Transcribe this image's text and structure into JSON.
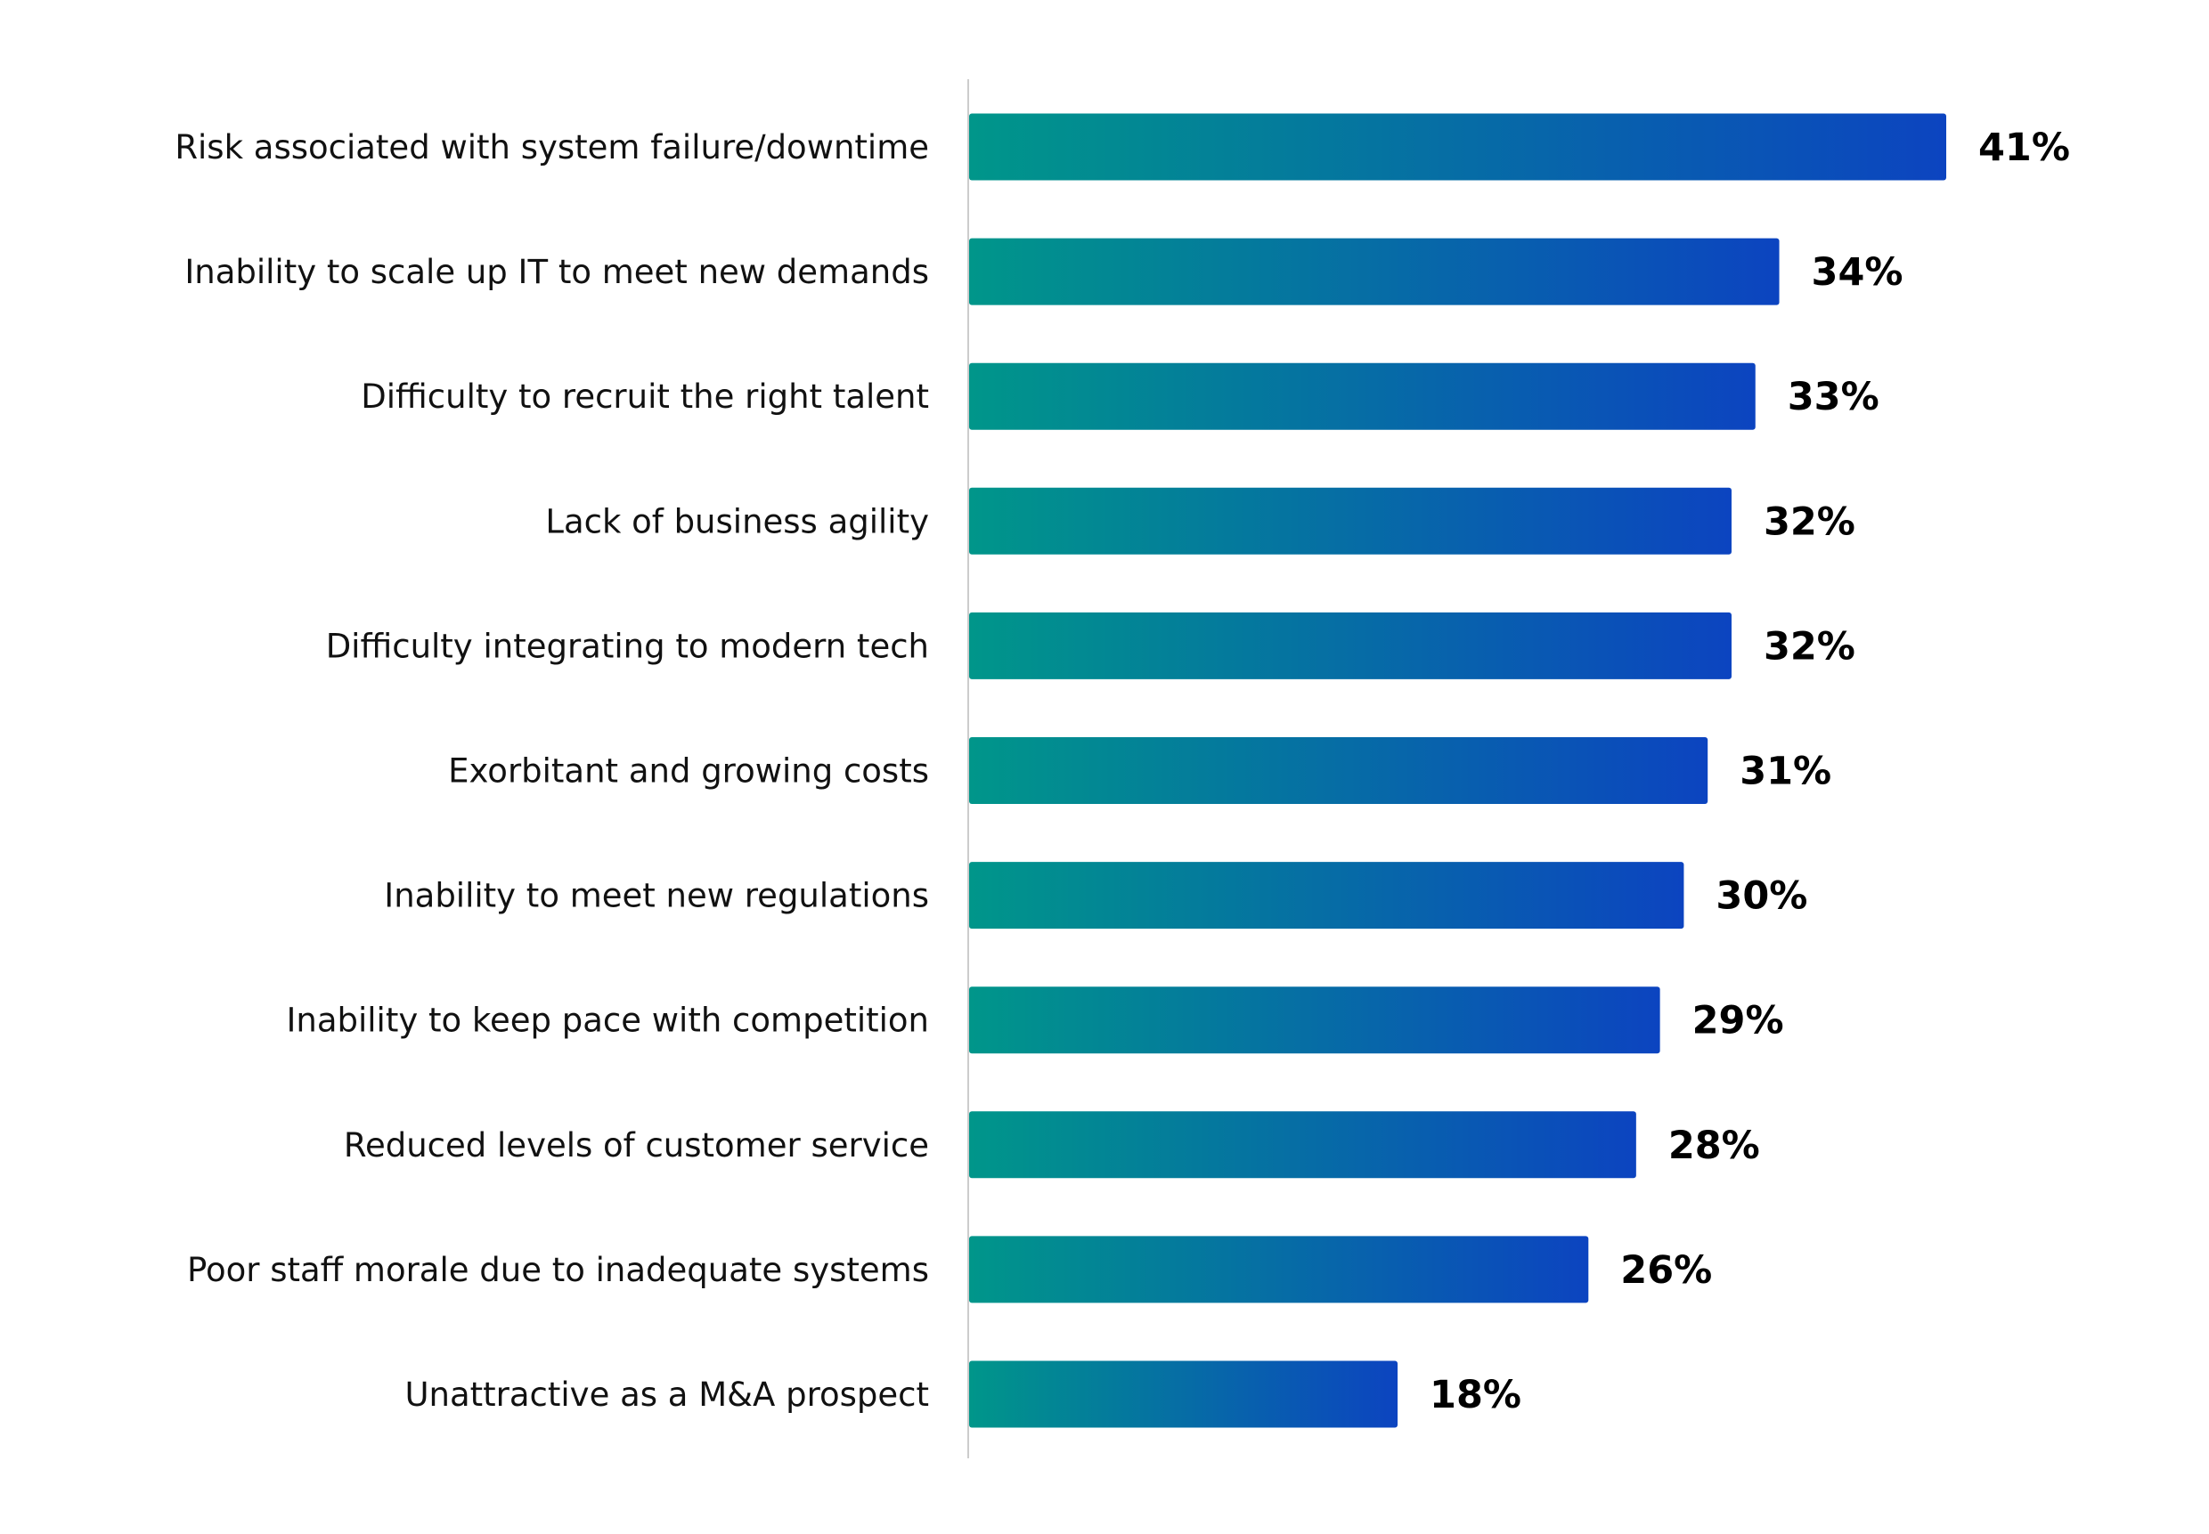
{
  "chart_data": {
    "type": "bar",
    "orientation": "horizontal",
    "categories": [
      "Risk associated with system failure/downtime",
      "Inability to scale up IT to meet new demands",
      "Difficulty to recruit the right talent",
      "Lack of business agility",
      "Difficulty integrating to modern tech",
      "Exorbitant and growing costs",
      "Inability to meet new regulations",
      "Inability to keep pace with competition",
      "Reduced levels of customer service",
      "Poor staff morale due to inadequate systems",
      "Unattractive as a M&A prospect"
    ],
    "values": [
      41,
      34,
      33,
      32,
      32,
      31,
      30,
      29,
      28,
      26,
      18
    ],
    "labels": [
      "41%",
      "34%",
      "33%",
      "32%",
      "32%",
      "31%",
      "30%",
      "29%",
      "28%",
      "26%",
      "18%"
    ],
    "unit": "%",
    "xlim": [
      0,
      41
    ],
    "grid": false,
    "legend": "none",
    "colors": {
      "gradient_start": "#00968a",
      "gradient_end": "#0c44c0",
      "axis": "#cccccc"
    }
  }
}
